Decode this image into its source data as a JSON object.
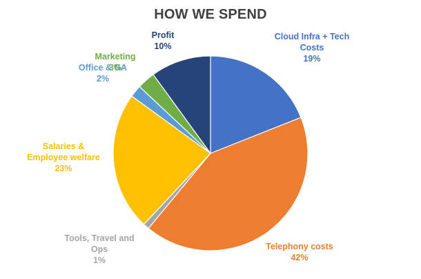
{
  "chart_data": {
    "type": "pie",
    "title": "HOW WE SPEND",
    "slices": [
      {
        "name": "Cloud Infra + Tech Costs",
        "label_lines": [
          "Cloud Infra + Tech",
          "Costs"
        ],
        "value": 19,
        "percent_label": "19%",
        "color": "#4472C4"
      },
      {
        "name": "Telephony costs",
        "label_lines": [
          "Telephony costs"
        ],
        "value": 42,
        "percent_label": "42%",
        "color": "#ED7D31"
      },
      {
        "name": "Tools, Travel and Ops",
        "label_lines": [
          "Tools, Travel and",
          "Ops"
        ],
        "value": 1,
        "percent_label": "1%",
        "color": "#A5A5A5"
      },
      {
        "name": "Salaries & Employee welfare",
        "label_lines": [
          "Salaries &",
          "Employee welfare"
        ],
        "value": 23,
        "percent_label": "23%",
        "color": "#FFC000"
      },
      {
        "name": "Office & GA",
        "label_lines": [
          "Office & GA"
        ],
        "value": 2,
        "percent_label": "2%",
        "color": "#5B9BD5"
      },
      {
        "name": "Marketing",
        "label_lines": [
          "Marketing"
        ],
        "value": 3,
        "percent_label": "3%",
        "color": "#70AD47"
      },
      {
        "name": "Profit",
        "label_lines": [
          "Profit"
        ],
        "value": 10,
        "percent_label": "10%",
        "color": "#264478"
      }
    ]
  }
}
